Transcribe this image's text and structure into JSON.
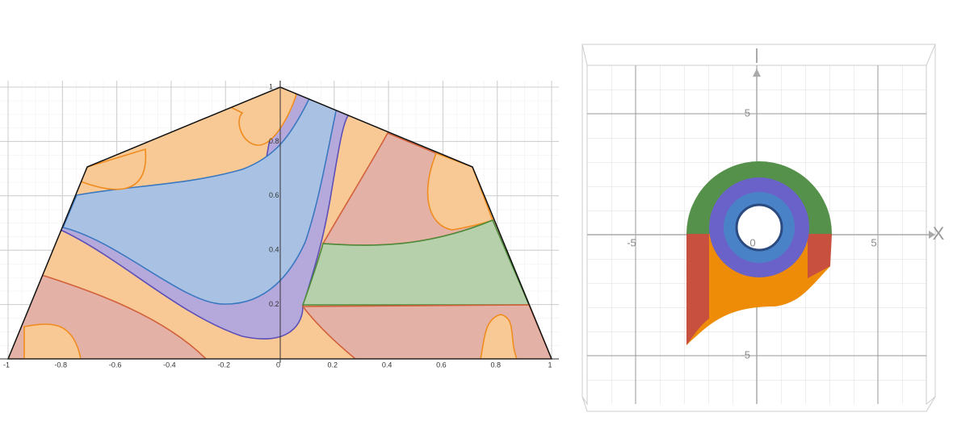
{
  "chart_data": [
    {
      "type": "region",
      "xlim": [
        -1,
        1
      ],
      "ylim": [
        0,
        1
      ],
      "xticks": [
        -1,
        -0.8,
        -0.6,
        -0.4,
        -0.2,
        0,
        0.2,
        0.4,
        0.6,
        0.8,
        1
      ],
      "yticks": [
        0.2,
        0.4,
        0.6,
        0.8,
        1
      ],
      "grid": true
    },
    {
      "type": "surface3d",
      "xlabel": "X",
      "xlim": [
        -7,
        7
      ],
      "ylim": [
        -7,
        7
      ],
      "xticks": [
        -5,
        0,
        5
      ],
      "yticks": [
        -5,
        5
      ],
      "grid": true
    }
  ]
}
